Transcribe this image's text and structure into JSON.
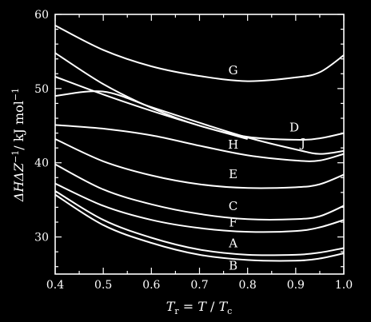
{
  "chart_data": {
    "type": "line",
    "title": "",
    "xlabel": "T_r = T/T_c",
    "ylabel": "ΔHΔZ⁻¹/kJ mol⁻¹",
    "xlim": [
      0.4,
      1.0
    ],
    "ylim": [
      25,
      60
    ],
    "xticks": [
      0.4,
      0.5,
      0.6,
      0.7,
      0.8,
      0.9,
      1.0
    ],
    "yticks": [
      30,
      40,
      50,
      60
    ],
    "x_tick_labels": [
      "0.4",
      "0.5",
      "0.6",
      "0.7",
      "0.8",
      "0.9",
      "1.0"
    ],
    "y_tick_labels": [
      "30",
      "40",
      "50",
      "60"
    ],
    "series": [
      {
        "name": "G",
        "x": [
          0.4,
          0.5,
          0.6,
          0.7,
          0.8,
          0.9,
          0.95,
          1.0
        ],
        "values": [
          58.5,
          55.2,
          53.0,
          51.7,
          51.0,
          51.5,
          52.2,
          54.5
        ]
      },
      {
        "name": "D",
        "x": [
          0.4,
          0.5,
          0.6,
          0.7,
          0.8,
          0.9,
          0.95,
          1.0
        ],
        "values": [
          54.8,
          50.6,
          47.4,
          45.0,
          43.5,
          43.1,
          43.3,
          44.0
        ]
      },
      {
        "name": "J",
        "x": [
          0.4,
          0.5,
          0.6,
          0.7,
          0.8,
          0.9,
          0.95,
          1.0
        ],
        "values": [
          49.0,
          49.6,
          47.5,
          45.4,
          43.4,
          41.8,
          41.2,
          41.6
        ]
      },
      {
        "name": "H",
        "x": [
          0.4,
          0.5,
          0.6,
          0.7,
          0.8,
          0.9,
          0.95,
          1.0
        ],
        "values": [
          45.1,
          44.6,
          43.7,
          42.3,
          41.0,
          40.3,
          40.3,
          41.2
        ]
      },
      {
        "name": "",
        "x": [
          0.4,
          0.5,
          0.6,
          0.7,
          0.8
        ],
        "values": [
          51.6,
          49.2,
          47.0,
          45.0,
          43.2
        ]
      },
      {
        "name": "E",
        "x": [
          0.4,
          0.5,
          0.6,
          0.7,
          0.8,
          0.9,
          0.95,
          1.0
        ],
        "values": [
          43.2,
          40.2,
          38.3,
          37.1,
          36.6,
          36.7,
          37.1,
          38.4
        ]
      },
      {
        "name": "C",
        "x": [
          0.4,
          0.5,
          0.6,
          0.7,
          0.8,
          0.9,
          0.95,
          1.0
        ],
        "values": [
          39.8,
          36.4,
          34.4,
          33.1,
          32.4,
          32.4,
          32.8,
          34.2
        ]
      },
      {
        "name": "F",
        "x": [
          0.4,
          0.5,
          0.6,
          0.7,
          0.8,
          0.9,
          0.95,
          1.0
        ],
        "values": [
          37.2,
          34.2,
          32.3,
          31.2,
          30.7,
          30.8,
          31.3,
          32.3
        ]
      },
      {
        "name": "A",
        "x": [
          0.4,
          0.5,
          0.6,
          0.7,
          0.8,
          0.9,
          0.95,
          1.0
        ],
        "values": [
          36.2,
          32.3,
          29.9,
          28.3,
          27.6,
          27.6,
          27.9,
          28.5
        ]
      },
      {
        "name": "B",
        "x": [
          0.4,
          0.5,
          0.6,
          0.7,
          0.8,
          0.9,
          0.95,
          1.0
        ],
        "values": [
          35.7,
          31.6,
          29.2,
          27.6,
          26.9,
          26.8,
          27.1,
          27.8
        ]
      }
    ],
    "curve_labels": [
      {
        "text": "G",
        "x": 0.77,
        "y": 51.9
      },
      {
        "text": "D",
        "x": 0.897,
        "y": 44.2
      },
      {
        "text": "J",
        "x": 0.915,
        "y": 42.1
      },
      {
        "text": "H",
        "x": 0.77,
        "y": 41.9
      },
      {
        "text": "E",
        "x": 0.77,
        "y": 37.9
      },
      {
        "text": "C",
        "x": 0.77,
        "y": 33.6
      },
      {
        "text": "F",
        "x": 0.77,
        "y": 31.4
      },
      {
        "text": "A",
        "x": 0.77,
        "y": 28.6
      },
      {
        "text": "B",
        "x": 0.77,
        "y": 25.6
      }
    ],
    "grid": false,
    "legend": "none (curves labelled directly)"
  }
}
